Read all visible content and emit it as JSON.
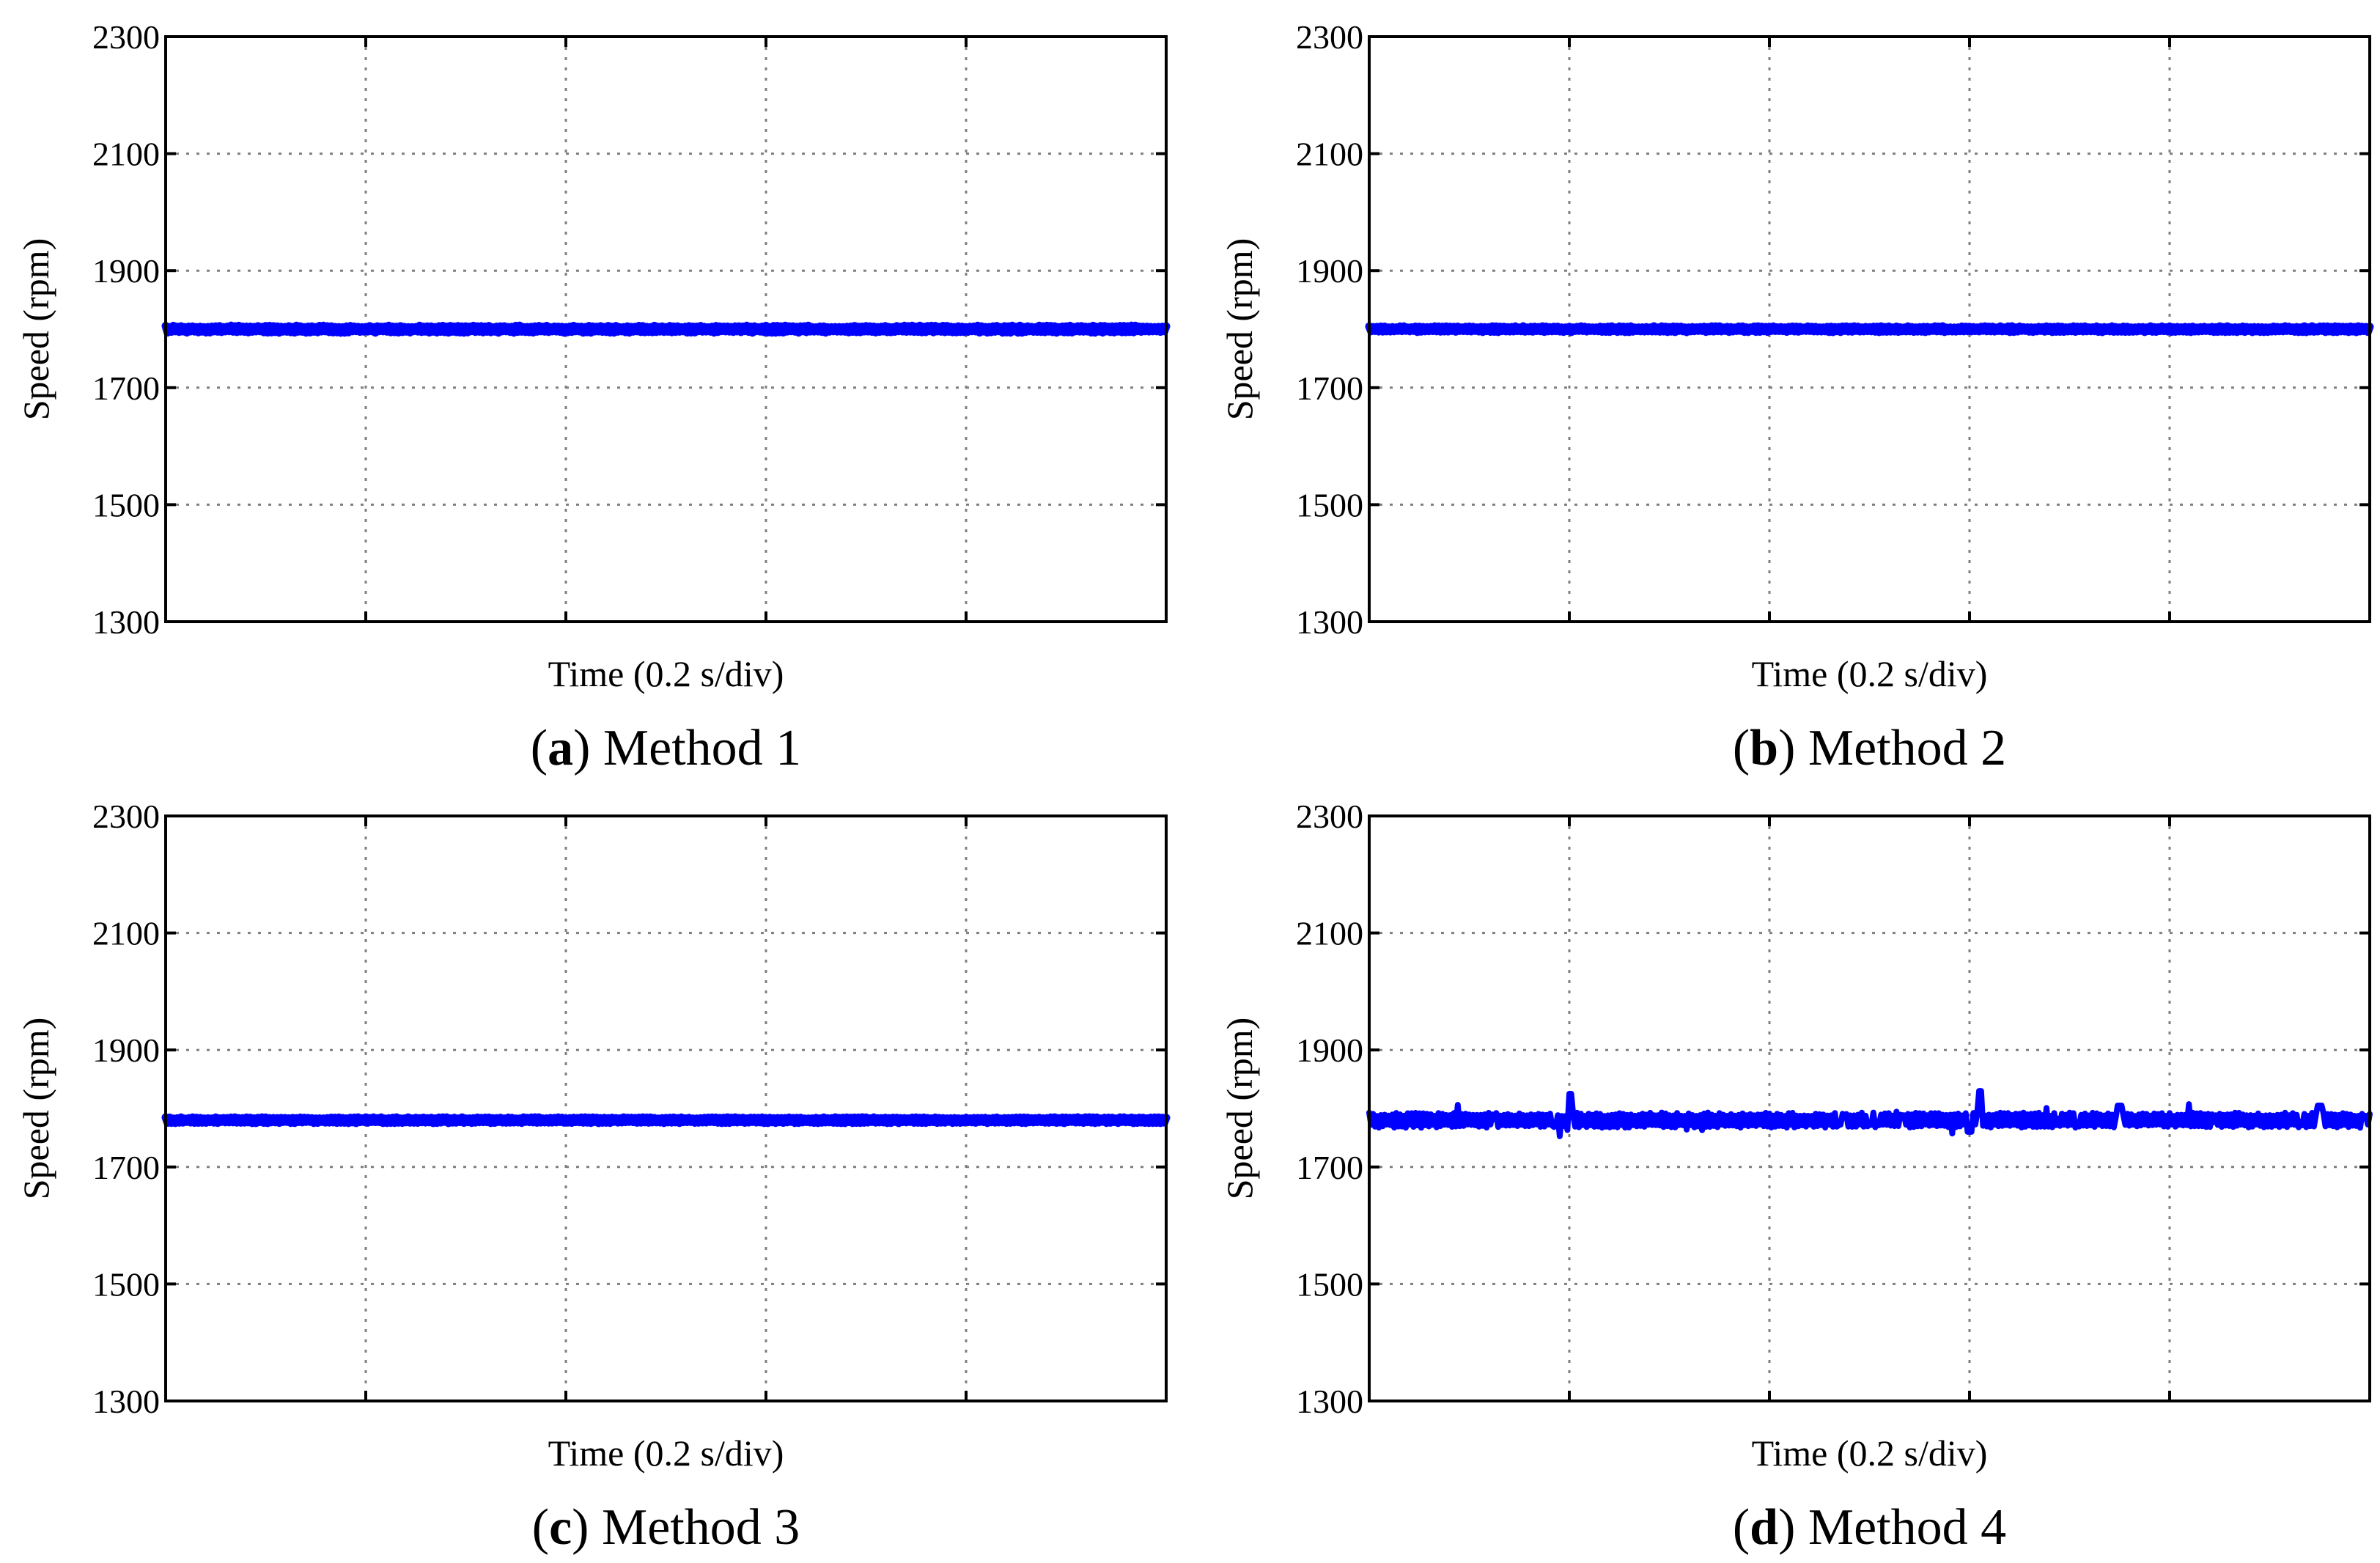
{
  "figure_title": "",
  "chart_data": [
    {
      "type": "line",
      "panel_letter": "a",
      "caption_text": "Method 1",
      "title": "",
      "xlabel": "Time (0.2 s/div)",
      "ylabel": "Speed (rpm)",
      "ylim": [
        1300,
        2300
      ],
      "yticks": [
        "1300",
        "1500",
        "1700",
        "1900",
        "2100",
        "2300"
      ],
      "x_divisions": 5,
      "grid": true,
      "color": "#0000ff",
      "series": [
        {
          "name": "speed",
          "mean": 1800,
          "ripple": 6,
          "spikes": []
        }
      ]
    },
    {
      "type": "line",
      "panel_letter": "b",
      "caption_text": "Method 2",
      "title": "",
      "xlabel": "Time (0.2 s/div)",
      "ylabel": "Speed (rpm)",
      "ylim": [
        1300,
        2300
      ],
      "yticks": [
        "1300",
        "1500",
        "1700",
        "1900",
        "2100",
        "2300"
      ],
      "x_divisions": 5,
      "grid": true,
      "color": "#0000ff",
      "series": [
        {
          "name": "speed",
          "mean": 1800,
          "ripple": 5,
          "spikes": []
        }
      ]
    },
    {
      "type": "line",
      "panel_letter": "c",
      "caption_text": "Method 3",
      "title": "",
      "xlabel": "Time (0.2 s/div)",
      "ylabel": "Speed (rpm)",
      "ylim": [
        1300,
        2300
      ],
      "yticks": [
        "1300",
        "1500",
        "1700",
        "1900",
        "2100",
        "2300"
      ],
      "x_divisions": 5,
      "grid": true,
      "color": "#0000ff",
      "series": [
        {
          "name": "speed",
          "mean": 1780,
          "ripple": 5,
          "spikes": []
        }
      ]
    },
    {
      "type": "line",
      "panel_letter": "d",
      "caption_text": "Method 4",
      "title": "",
      "xlabel": "Time (0.2 s/div)",
      "ylabel": "Speed (rpm)",
      "ylim": [
        1300,
        2300
      ],
      "yticks": [
        "1300",
        "1500",
        "1700",
        "1900",
        "2100",
        "2300"
      ],
      "x_divisions": 5,
      "grid": true,
      "color": "#0000ff",
      "series": [
        {
          "name": "speed",
          "mean": 1780,
          "ripple": 13,
          "spikes": [
            [
              0.2,
              1825
            ],
            [
              0.6,
              1760
            ],
            [
              0.61,
              1830
            ],
            [
              0.75,
              1805
            ],
            [
              0.95,
              1805
            ]
          ]
        }
      ]
    }
  ]
}
